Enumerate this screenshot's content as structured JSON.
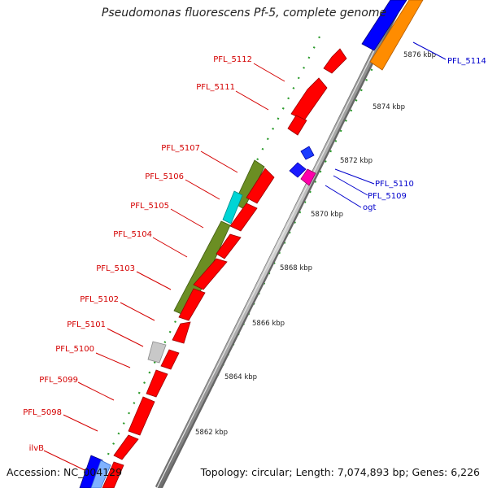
{
  "title": "Pseudomonas fluorescens Pf-5, complete genome",
  "accession": "Accession: NC_004129",
  "summary": "Topology: circular; Length: 7,074,893 bp; Genes: 6,226",
  "colors": {
    "background": "#ffffff",
    "backbone": "#9a9a9a",
    "gene_red": "#ff0000",
    "gene_blue": "#0000ff",
    "gene_olive": "#6b8e23",
    "gene_cyan": "#00d5d5",
    "gene_magenta": "#ff00aa",
    "gene_orange": "#ff8c00",
    "gene_grey": "#c8c8c8",
    "label_red": "#d40000",
    "label_blue": "#0000cc",
    "tick_green": "#2a9a2a"
  },
  "scale_labels": [
    "5876 kbp",
    "5874 kbp",
    "5872 kbp",
    "5870 kbp",
    "5868 kbp",
    "5866 kbp",
    "5864 kbp",
    "5862 kbp"
  ],
  "left_labels": [
    "PFL_5112",
    "PFL_5111",
    "PFL_5107",
    "PFL_5106",
    "PFL_5105",
    "PFL_5104",
    "PFL_5103",
    "PFL_5102",
    "PFL_5101",
    "PFL_5100",
    "PFL_5099",
    "PFL_5098",
    "ilvB"
  ],
  "right_labels": [
    "PFL_5114",
    "PFL_5110",
    "PFL_5109",
    "ogt"
  ]
}
